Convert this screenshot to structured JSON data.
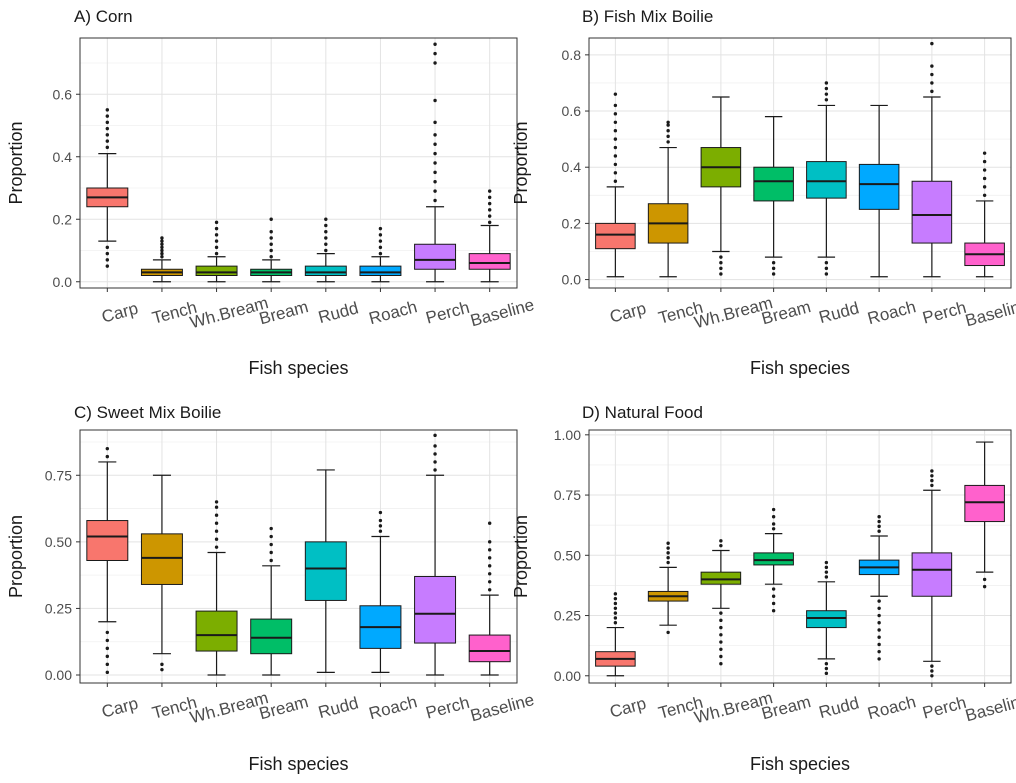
{
  "chart_data": [
    {
      "type": "box",
      "title": "A)  Corn",
      "xlabel": "Fish species",
      "ylabel": "Proportion",
      "ylim": [
        -0.02,
        0.78
      ],
      "yticks": [
        0.0,
        0.2,
        0.4,
        0.6
      ],
      "ytick_labels": [
        "0.0",
        "0.2",
        "0.4",
        "0.6"
      ],
      "grid": true,
      "categories": [
        "Carp",
        "Tench",
        "Wh.Bream",
        "Bream",
        "Rudd",
        "Roach",
        "Perch",
        "Baseline"
      ],
      "colors": [
        "#F8766D",
        "#CD9600",
        "#7CAE00",
        "#00BE67",
        "#00BFC4",
        "#00A9FF",
        "#C77CFF",
        "#FF61CC"
      ],
      "boxes": [
        {
          "whisker_low": 0.13,
          "q1": 0.24,
          "median": 0.27,
          "q3": 0.3,
          "whisker_high": 0.41,
          "outliers": [
            0.05,
            0.07,
            0.09,
            0.11,
            0.43,
            0.45,
            0.47,
            0.49,
            0.51,
            0.53,
            0.55
          ]
        },
        {
          "whisker_low": 0.0,
          "q1": 0.02,
          "median": 0.03,
          "q3": 0.04,
          "whisker_high": 0.07,
          "outliers": [
            0.08,
            0.09,
            0.1,
            0.11,
            0.12,
            0.13,
            0.14
          ]
        },
        {
          "whisker_low": 0.0,
          "q1": 0.02,
          "median": 0.03,
          "q3": 0.05,
          "whisker_high": 0.08,
          "outliers": [
            0.09,
            0.11,
            0.13,
            0.15,
            0.17,
            0.19
          ]
        },
        {
          "whisker_low": 0.0,
          "q1": 0.02,
          "median": 0.03,
          "q3": 0.04,
          "whisker_high": 0.07,
          "outliers": [
            0.08,
            0.1,
            0.12,
            0.14,
            0.16,
            0.2
          ]
        },
        {
          "whisker_low": 0.0,
          "q1": 0.02,
          "median": 0.03,
          "q3": 0.05,
          "whisker_high": 0.09,
          "outliers": [
            0.1,
            0.12,
            0.14,
            0.16,
            0.18,
            0.2
          ]
        },
        {
          "whisker_low": 0.0,
          "q1": 0.02,
          "median": 0.03,
          "q3": 0.05,
          "whisker_high": 0.08,
          "outliers": [
            0.09,
            0.11,
            0.13,
            0.15,
            0.17
          ]
        },
        {
          "whisker_low": 0.0,
          "q1": 0.04,
          "median": 0.07,
          "q3": 0.12,
          "whisker_high": 0.24,
          "outliers": [
            0.26,
            0.29,
            0.32,
            0.35,
            0.38,
            0.41,
            0.44,
            0.47,
            0.51,
            0.58,
            0.7,
            0.73,
            0.76
          ]
        },
        {
          "whisker_low": 0.0,
          "q1": 0.04,
          "median": 0.06,
          "q3": 0.09,
          "whisker_high": 0.18,
          "outliers": [
            0.19,
            0.21,
            0.23,
            0.25,
            0.27,
            0.29
          ]
        }
      ]
    },
    {
      "type": "box",
      "title": "B)  Fish Mix Boilie",
      "xlabel": "Fish species",
      "ylabel": "Proportion",
      "ylim": [
        -0.03,
        0.86
      ],
      "yticks": [
        0.0,
        0.2,
        0.4,
        0.6,
        0.8
      ],
      "ytick_labels": [
        "0.0",
        "0.2",
        "0.4",
        "0.6",
        "0.8"
      ],
      "grid": true,
      "categories": [
        "Carp",
        "Tench",
        "Wh.Bream",
        "Bream",
        "Rudd",
        "Roach",
        "Perch",
        "Baseline"
      ],
      "colors": [
        "#F8766D",
        "#CD9600",
        "#7CAE00",
        "#00BE67",
        "#00BFC4",
        "#00A9FF",
        "#C77CFF",
        "#FF61CC"
      ],
      "boxes": [
        {
          "whisker_low": 0.01,
          "q1": 0.11,
          "median": 0.16,
          "q3": 0.2,
          "whisker_high": 0.33,
          "outliers": [
            0.35,
            0.38,
            0.41,
            0.44,
            0.47,
            0.5,
            0.53,
            0.56,
            0.59,
            0.62,
            0.66
          ]
        },
        {
          "whisker_low": 0.01,
          "q1": 0.13,
          "median": 0.2,
          "q3": 0.27,
          "whisker_high": 0.47,
          "outliers": [
            0.49,
            0.51,
            0.53,
            0.55,
            0.56
          ]
        },
        {
          "whisker_low": 0.1,
          "q1": 0.33,
          "median": 0.4,
          "q3": 0.47,
          "whisker_high": 0.65,
          "outliers": [
            0.02,
            0.04,
            0.06,
            0.08
          ]
        },
        {
          "whisker_low": 0.08,
          "q1": 0.28,
          "median": 0.35,
          "q3": 0.4,
          "whisker_high": 0.58,
          "outliers": [
            0.02,
            0.04,
            0.06
          ]
        },
        {
          "whisker_low": 0.08,
          "q1": 0.29,
          "median": 0.35,
          "q3": 0.42,
          "whisker_high": 0.62,
          "outliers": [
            0.02,
            0.04,
            0.06,
            0.64,
            0.66,
            0.68,
            0.7
          ]
        },
        {
          "whisker_low": 0.01,
          "q1": 0.25,
          "median": 0.34,
          "q3": 0.41,
          "whisker_high": 0.62,
          "outliers": []
        },
        {
          "whisker_low": 0.01,
          "q1": 0.13,
          "median": 0.23,
          "q3": 0.35,
          "whisker_high": 0.65,
          "outliers": [
            0.67,
            0.7,
            0.73,
            0.76,
            0.84
          ]
        },
        {
          "whisker_low": 0.01,
          "q1": 0.05,
          "median": 0.09,
          "q3": 0.13,
          "whisker_high": 0.28,
          "outliers": [
            0.3,
            0.33,
            0.36,
            0.39,
            0.42,
            0.45
          ]
        }
      ]
    },
    {
      "type": "box",
      "title": "C)  Sweet Mix Boilie",
      "xlabel": "Fish species",
      "ylabel": "Proportion",
      "ylim": [
        -0.03,
        0.92
      ],
      "yticks": [
        0.0,
        0.25,
        0.5,
        0.75
      ],
      "ytick_labels": [
        "0.00",
        "0.25",
        "0.50",
        "0.75"
      ],
      "grid": true,
      "categories": [
        "Carp",
        "Tench",
        "Wh.Bream",
        "Bream",
        "Rudd",
        "Roach",
        "Perch",
        "Baseline"
      ],
      "colors": [
        "#F8766D",
        "#CD9600",
        "#7CAE00",
        "#00BE67",
        "#00BFC4",
        "#00A9FF",
        "#C77CFF",
        "#FF61CC"
      ],
      "boxes": [
        {
          "whisker_low": 0.2,
          "q1": 0.43,
          "median": 0.52,
          "q3": 0.58,
          "whisker_high": 0.8,
          "outliers": [
            0.01,
            0.04,
            0.07,
            0.1,
            0.13,
            0.16,
            0.82,
            0.85
          ]
        },
        {
          "whisker_low": 0.08,
          "q1": 0.34,
          "median": 0.44,
          "q3": 0.53,
          "whisker_high": 0.75,
          "outliers": [
            0.02,
            0.04
          ]
        },
        {
          "whisker_low": 0.0,
          "q1": 0.09,
          "median": 0.15,
          "q3": 0.24,
          "whisker_high": 0.46,
          "outliers": [
            0.48,
            0.51,
            0.54,
            0.57,
            0.6,
            0.63,
            0.65
          ]
        },
        {
          "whisker_low": 0.0,
          "q1": 0.08,
          "median": 0.14,
          "q3": 0.21,
          "whisker_high": 0.41,
          "outliers": [
            0.43,
            0.46,
            0.49,
            0.52,
            0.55
          ]
        },
        {
          "whisker_low": 0.01,
          "q1": 0.28,
          "median": 0.4,
          "q3": 0.5,
          "whisker_high": 0.77,
          "outliers": []
        },
        {
          "whisker_low": 0.01,
          "q1": 0.1,
          "median": 0.18,
          "q3": 0.26,
          "whisker_high": 0.52,
          "outliers": [
            0.54,
            0.56,
            0.58,
            0.61
          ]
        },
        {
          "whisker_low": 0.0,
          "q1": 0.12,
          "median": 0.23,
          "q3": 0.37,
          "whisker_high": 0.75,
          "outliers": [
            0.77,
            0.8,
            0.83,
            0.86,
            0.9
          ]
        },
        {
          "whisker_low": 0.0,
          "q1": 0.05,
          "median": 0.09,
          "q3": 0.15,
          "whisker_high": 0.3,
          "outliers": [
            0.32,
            0.35,
            0.38,
            0.41,
            0.44,
            0.47,
            0.5,
            0.57
          ]
        }
      ]
    },
    {
      "type": "box",
      "title": "D)  Natural Food",
      "xlabel": "Fish species",
      "ylabel": "Proportion",
      "ylim": [
        -0.03,
        1.02
      ],
      "yticks": [
        0.0,
        0.25,
        0.5,
        0.75,
        1.0
      ],
      "ytick_labels": [
        "0.00",
        "0.25",
        "0.50",
        "0.75",
        "1.00"
      ],
      "grid": true,
      "categories": [
        "Carp",
        "Tench",
        "Wh.Bream",
        "Bream",
        "Rudd",
        "Roach",
        "Perch",
        "Baseline"
      ],
      "colors": [
        "#F8766D",
        "#CD9600",
        "#7CAE00",
        "#00BE67",
        "#00BFC4",
        "#00A9FF",
        "#C77CFF",
        "#FF61CC"
      ],
      "boxes": [
        {
          "whisker_low": 0.0,
          "q1": 0.04,
          "median": 0.07,
          "q3": 0.1,
          "whisker_high": 0.2,
          "outliers": [
            0.22,
            0.24,
            0.26,
            0.28,
            0.3,
            0.32,
            0.34
          ]
        },
        {
          "whisker_low": 0.21,
          "q1": 0.31,
          "median": 0.33,
          "q3": 0.35,
          "whisker_high": 0.45,
          "outliers": [
            0.18,
            0.47,
            0.49,
            0.51,
            0.53,
            0.55
          ]
        },
        {
          "whisker_low": 0.28,
          "q1": 0.38,
          "median": 0.4,
          "q3": 0.43,
          "whisker_high": 0.52,
          "outliers": [
            0.05,
            0.08,
            0.11,
            0.14,
            0.17,
            0.2,
            0.23,
            0.26,
            0.54,
            0.56
          ]
        },
        {
          "whisker_low": 0.38,
          "q1": 0.46,
          "median": 0.48,
          "q3": 0.51,
          "whisker_high": 0.59,
          "outliers": [
            0.27,
            0.3,
            0.33,
            0.36,
            0.61,
            0.63,
            0.66,
            0.69
          ]
        },
        {
          "whisker_low": 0.07,
          "q1": 0.2,
          "median": 0.24,
          "q3": 0.27,
          "whisker_high": 0.39,
          "outliers": [
            0.01,
            0.03,
            0.05,
            0.41,
            0.43,
            0.45,
            0.47
          ]
        },
        {
          "whisker_low": 0.33,
          "q1": 0.42,
          "median": 0.45,
          "q3": 0.48,
          "whisker_high": 0.58,
          "outliers": [
            0.07,
            0.1,
            0.13,
            0.16,
            0.19,
            0.22,
            0.25,
            0.28,
            0.31,
            0.6,
            0.62,
            0.64,
            0.66
          ]
        },
        {
          "whisker_low": 0.06,
          "q1": 0.33,
          "median": 0.44,
          "q3": 0.51,
          "whisker_high": 0.77,
          "outliers": [
            0.0,
            0.02,
            0.04,
            0.79,
            0.81,
            0.83,
            0.85
          ]
        },
        {
          "whisker_low": 0.43,
          "q1": 0.64,
          "median": 0.72,
          "q3": 0.79,
          "whisker_high": 0.97,
          "outliers": [
            0.37,
            0.4
          ]
        }
      ]
    }
  ]
}
